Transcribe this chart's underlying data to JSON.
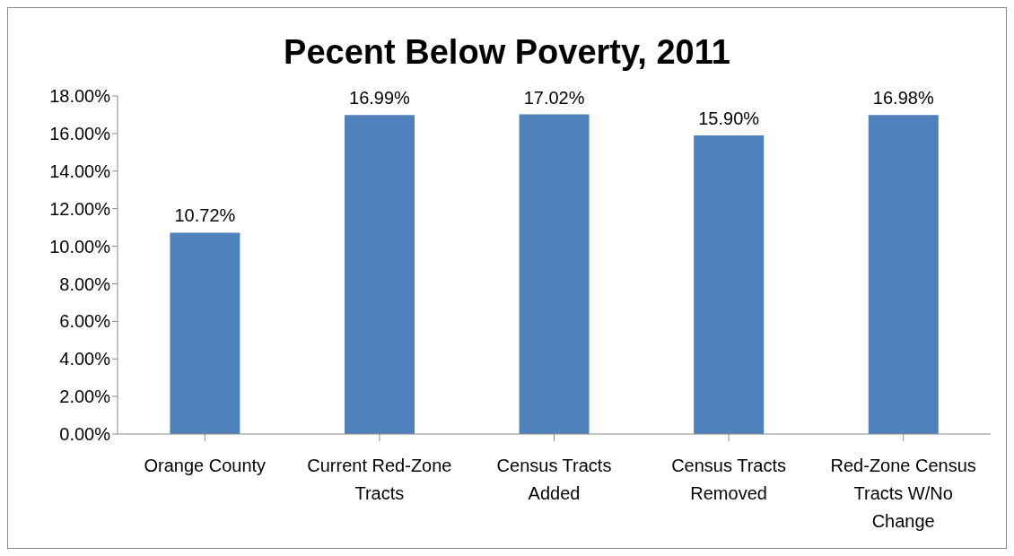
{
  "chart_data": {
    "type": "bar",
    "title": "Pecent Below Poverty, 2011",
    "categories": [
      "Orange County",
      "Current Red-Zone Tracts",
      "Census Tracts Added",
      "Census Tracts Removed",
      "Red-Zone Census Tracts W/No Change"
    ],
    "values": [
      10.72,
      16.99,
      17.02,
      15.9,
      16.98
    ],
    "value_labels": [
      "10.72%",
      "16.99%",
      "17.02%",
      "15.90%",
      "16.98%"
    ],
    "color": "#4f81bd",
    "ylim": [
      0,
      18
    ],
    "yticks": [
      {
        "value": 0,
        "label": "0.00%"
      },
      {
        "value": 2,
        "label": "2.00%"
      },
      {
        "value": 4,
        "label": "4.00%"
      },
      {
        "value": 6,
        "label": "6.00%"
      },
      {
        "value": 8,
        "label": "8.00%"
      },
      {
        "value": 10,
        "label": "10.00%"
      },
      {
        "value": 12,
        "label": "12.00%"
      },
      {
        "value": 14,
        "label": "14.00%"
      },
      {
        "value": 16,
        "label": "16.00%"
      },
      {
        "value": 18,
        "label": "18.00%"
      }
    ]
  }
}
